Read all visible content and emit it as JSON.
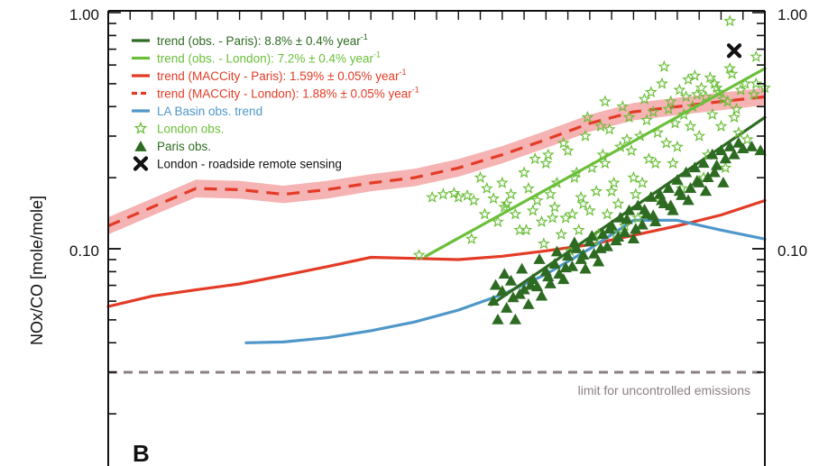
{
  "chart_data": {
    "type": "scatter",
    "panel_label": "B",
    "ylabel": "NOx/CO [mole/mole]",
    "y_scale": "log",
    "ylim": [
      0.016,
      1.0
    ],
    "xlim": [
      0,
      30
    ],
    "y_tick_labels": [
      {
        "value": 1.0,
        "label": "1.00"
      },
      {
        "value": 0.1,
        "label": "0.10"
      }
    ],
    "x_tick_count": 31,
    "colors": {
      "paris_trend": "#2e6b22",
      "london_trend": "#6bbf3a",
      "maccity": "#e33b26",
      "maccity_band": "#f4a6a6",
      "la_basin": "#4f97c9",
      "limit": "#8a7f84",
      "roadside": "#111111"
    },
    "legend": [
      {
        "id": "paris_trend",
        "marker": "solid-line",
        "text": "trend (obs. - Paris): 8.8% ± 0.4% year",
        "sup": "-1"
      },
      {
        "id": "london_trend",
        "marker": "solid-line",
        "text": "trend (obs. - London): 7.2% ± 0.4% year",
        "sup": "-1"
      },
      {
        "id": "maccity_paris",
        "marker": "solid-line",
        "text": "trend (MACCity - Paris): 1.59% ± 0.05% year",
        "sup": "-1"
      },
      {
        "id": "maccity_london",
        "marker": "dashed-line",
        "text": "trend (MACCity - London): 1.88% ± 0.05% year",
        "sup": "-1"
      },
      {
        "id": "la_basin",
        "marker": "solid-line",
        "text": "LA Basin obs. trend",
        "sup": ""
      },
      {
        "id": "london_obs",
        "marker": "star",
        "text": "London obs.",
        "sup": ""
      },
      {
        "id": "paris_obs",
        "marker": "triangle",
        "text": "Paris obs.",
        "sup": ""
      },
      {
        "id": "roadside",
        "marker": "cross",
        "text": "London - roadside remote sensing",
        "sup": ""
      }
    ],
    "series": [
      {
        "name": "trend (MACCity - London)",
        "kind": "dashed-line",
        "color_key": "maccity",
        "x": [
          0,
          2,
          4,
          6,
          8,
          10,
          12,
          14,
          16,
          18,
          20,
          22,
          24,
          26,
          28,
          30
        ],
        "y": [
          0.125,
          0.15,
          0.18,
          0.178,
          0.17,
          0.178,
          0.19,
          0.2,
          0.22,
          0.25,
          0.29,
          0.34,
          0.38,
          0.4,
          0.42,
          0.44
        ]
      },
      {
        "name": "MACCity - London uncertainty",
        "kind": "band",
        "color_key": "maccity_band",
        "x": [
          0,
          2,
          4,
          6,
          8,
          10,
          12,
          14,
          16,
          18,
          20,
          22,
          24,
          26,
          28,
          30
        ],
        "y_low": [
          0.115,
          0.138,
          0.165,
          0.163,
          0.156,
          0.163,
          0.175,
          0.184,
          0.202,
          0.23,
          0.267,
          0.313,
          0.35,
          0.368,
          0.386,
          0.405
        ],
        "y_high": [
          0.136,
          0.163,
          0.196,
          0.194,
          0.185,
          0.194,
          0.207,
          0.218,
          0.24,
          0.272,
          0.316,
          0.37,
          0.414,
          0.436,
          0.458,
          0.48
        ]
      },
      {
        "name": "trend (MACCity - Paris)",
        "kind": "solid-line",
        "color_key": "maccity",
        "x": [
          0,
          2,
          4,
          6,
          8,
          10,
          12,
          14,
          16,
          18,
          20,
          22,
          24,
          26,
          28,
          30
        ],
        "y": [
          0.057,
          0.063,
          0.067,
          0.071,
          0.077,
          0.084,
          0.092,
          0.091,
          0.09,
          0.093,
          0.098,
          0.104,
          0.114,
          0.125,
          0.139,
          0.16
        ]
      },
      {
        "name": "LA Basin obs. trend",
        "kind": "solid-line",
        "color_key": "la_basin",
        "x": [
          6.3,
          8,
          10,
          12,
          14,
          16,
          18,
          20,
          22,
          24,
          26,
          28,
          30
        ],
        "y": [
          0.04,
          0.0403,
          0.042,
          0.045,
          0.049,
          0.055,
          0.064,
          0.078,
          0.1,
          0.132,
          0.132,
          0.12,
          0.11
        ]
      },
      {
        "name": "trend (obs. - Paris)",
        "kind": "solid-line",
        "color_key": "paris_trend",
        "x": [
          17.5,
          30
        ],
        "y": [
          0.058,
          0.36
        ]
      },
      {
        "name": "trend (obs. - London)",
        "kind": "solid-line",
        "color_key": "london_trend",
        "x": [
          14.5,
          30
        ],
        "y": [
          0.093,
          0.58
        ]
      },
      {
        "name": "limit for uncontrolled emissions",
        "kind": "dashed-line",
        "color_key": "limit",
        "x": [
          0,
          30
        ],
        "y": [
          0.03,
          0.03
        ]
      },
      {
        "name": "London obs.",
        "kind": "star",
        "color_key": "london_trend",
        "x": [
          14.2,
          14.8,
          15.3,
          15.8,
          16.0,
          16.4,
          16.7,
          17.0,
          17.3,
          17.6,
          18.0,
          18.2,
          18.4,
          18.6,
          19.0,
          19.2,
          19.4,
          19.6,
          19.8,
          20.0,
          20.2,
          20.4,
          20.5,
          20.7,
          20.9,
          21.0,
          21.2,
          21.3,
          21.5,
          21.6,
          21.8,
          22.0,
          22.1,
          22.3,
          22.4,
          22.6,
          22.8,
          22.9,
          23.1,
          23.3,
          23.4,
          23.6,
          23.8,
          24.0,
          24.1,
          24.3,
          24.5,
          24.7,
          24.9,
          25.1,
          25.3,
          25.5,
          25.7,
          25.9,
          26.1,
          26.3,
          26.5,
          26.7,
          26.9,
          27.1,
          27.3,
          27.5,
          27.7,
          27.9,
          28.1,
          28.3,
          28.5,
          28.7,
          28.9,
          29.1,
          29.5,
          30.0,
          16.6,
          17.8,
          18.8,
          19.9,
          21.1,
          22.2,
          23.2,
          24.2,
          25.2,
          26.2,
          27.2,
          28.2,
          19.5,
          20.8,
          22.5,
          23.7,
          24.6,
          25.6,
          26.6,
          27.6,
          28.6,
          20.1,
          21.4,
          22.7,
          23.9,
          25.0,
          26.0,
          27.0,
          28.0,
          17.2,
          18.1,
          19.1,
          20.3,
          21.7,
          23.0,
          24.4,
          25.8,
          27.4,
          28.8,
          29.2,
          21.9,
          22.7,
          23.5,
          24.8,
          26.4,
          27.8,
          25.4,
          26.8,
          28.4,
          29.6,
          28.4,
          29.6
        ],
        "y": [
          0.094,
          0.165,
          0.17,
          0.172,
          0.165,
          0.168,
          0.16,
          0.2,
          0.18,
          0.163,
          0.19,
          0.155,
          0.17,
          0.14,
          0.21,
          0.18,
          0.145,
          0.16,
          0.13,
          0.23,
          0.17,
          0.15,
          0.19,
          0.115,
          0.135,
          0.26,
          0.14,
          0.2,
          0.12,
          0.165,
          0.3,
          0.145,
          0.22,
          0.175,
          0.115,
          0.25,
          0.14,
          0.32,
          0.19,
          0.155,
          0.27,
          0.125,
          0.36,
          0.2,
          0.17,
          0.3,
          0.43,
          0.24,
          0.38,
          0.31,
          0.5,
          0.28,
          0.42,
          0.34,
          0.47,
          0.37,
          0.52,
          0.4,
          0.45,
          0.48,
          0.44,
          0.53,
          0.5,
          0.46,
          0.43,
          0.42,
          0.55,
          0.39,
          0.47,
          0.5,
          0.45,
          0.48,
          0.11,
          0.13,
          0.12,
          0.105,
          0.098,
          0.108,
          0.116,
          0.135,
          0.16,
          0.18,
          0.2,
          0.22,
          0.24,
          0.28,
          0.33,
          0.29,
          0.35,
          0.39,
          0.33,
          0.37,
          0.36,
          0.25,
          0.21,
          0.23,
          0.26,
          0.23,
          0.27,
          0.3,
          0.33,
          0.14,
          0.15,
          0.12,
          0.135,
          0.155,
          0.175,
          0.19,
          0.23,
          0.25,
          0.31,
          0.29,
          0.36,
          0.42,
          0.4,
          0.46,
          0.44,
          0.48,
          0.59,
          0.54,
          0.58,
          0.65,
          0.92,
          0.5
        ],
        "note": "approximate reading of star markers"
      },
      {
        "name": "Paris obs.",
        "kind": "triangle",
        "color_key": "paris_trend",
        "x": [
          17.6,
          17.8,
          18.0,
          18.2,
          18.4,
          18.6,
          18.8,
          19.0,
          19.2,
          19.4,
          19.6,
          19.8,
          20.0,
          20.2,
          20.4,
          20.6,
          20.8,
          21.0,
          21.2,
          21.4,
          21.6,
          21.8,
          22.0,
          22.2,
          22.4,
          22.6,
          22.8,
          23.0,
          23.2,
          23.4,
          23.6,
          23.8,
          24.0,
          24.2,
          24.4,
          24.6,
          24.8,
          25.0,
          25.2,
          25.4,
          25.6,
          25.8,
          26.0,
          26.2,
          26.4,
          26.6,
          26.8,
          27.0,
          27.2,
          27.4,
          27.6,
          27.8,
          28.0,
          28.2,
          28.4,
          28.6,
          28.8,
          29.0,
          29.4,
          29.8,
          17.7,
          18.1,
          18.5,
          18.9,
          19.3,
          19.7,
          20.1,
          20.5,
          20.9,
          21.3,
          21.7,
          22.1,
          22.5,
          22.9,
          23.3,
          23.7,
          24.1,
          24.5,
          24.9,
          25.3,
          25.7,
          26.1,
          26.5,
          26.9,
          27.3,
          27.7,
          28.1
        ],
        "y": [
          0.06,
          0.05,
          0.066,
          0.056,
          0.073,
          0.05,
          0.064,
          0.067,
          0.058,
          0.074,
          0.069,
          0.063,
          0.08,
          0.071,
          0.086,
          0.078,
          0.074,
          0.093,
          0.084,
          0.1,
          0.09,
          0.082,
          0.107,
          0.095,
          0.088,
          0.115,
          0.102,
          0.125,
          0.108,
          0.135,
          0.117,
          0.145,
          0.11,
          0.152,
          0.126,
          0.14,
          0.165,
          0.13,
          0.17,
          0.155,
          0.18,
          0.145,
          0.195,
          0.168,
          0.21,
          0.18,
          0.22,
          0.19,
          0.23,
          0.2,
          0.25,
          0.225,
          0.26,
          0.24,
          0.27,
          0.25,
          0.28,
          0.265,
          0.27,
          0.26,
          0.07,
          0.078,
          0.062,
          0.082,
          0.07,
          0.09,
          0.076,
          0.097,
          0.083,
          0.106,
          0.094,
          0.113,
          0.1,
          0.121,
          0.112,
          0.133,
          0.121,
          0.146,
          0.138,
          0.16,
          0.152,
          0.175,
          0.16,
          0.193,
          0.175,
          0.21,
          0.19
        ],
        "note": "approximate reading of triangle markers"
      },
      {
        "name": "London - roadside remote sensing",
        "kind": "cross",
        "color_key": "roadside",
        "x": [
          28.6
        ],
        "y": [
          0.69
        ]
      }
    ],
    "annotations": [
      {
        "id": "limit",
        "text": "limit for uncontrolled emissions",
        "x": 29.2,
        "y": 0.03,
        "anchor": "end"
      }
    ]
  }
}
